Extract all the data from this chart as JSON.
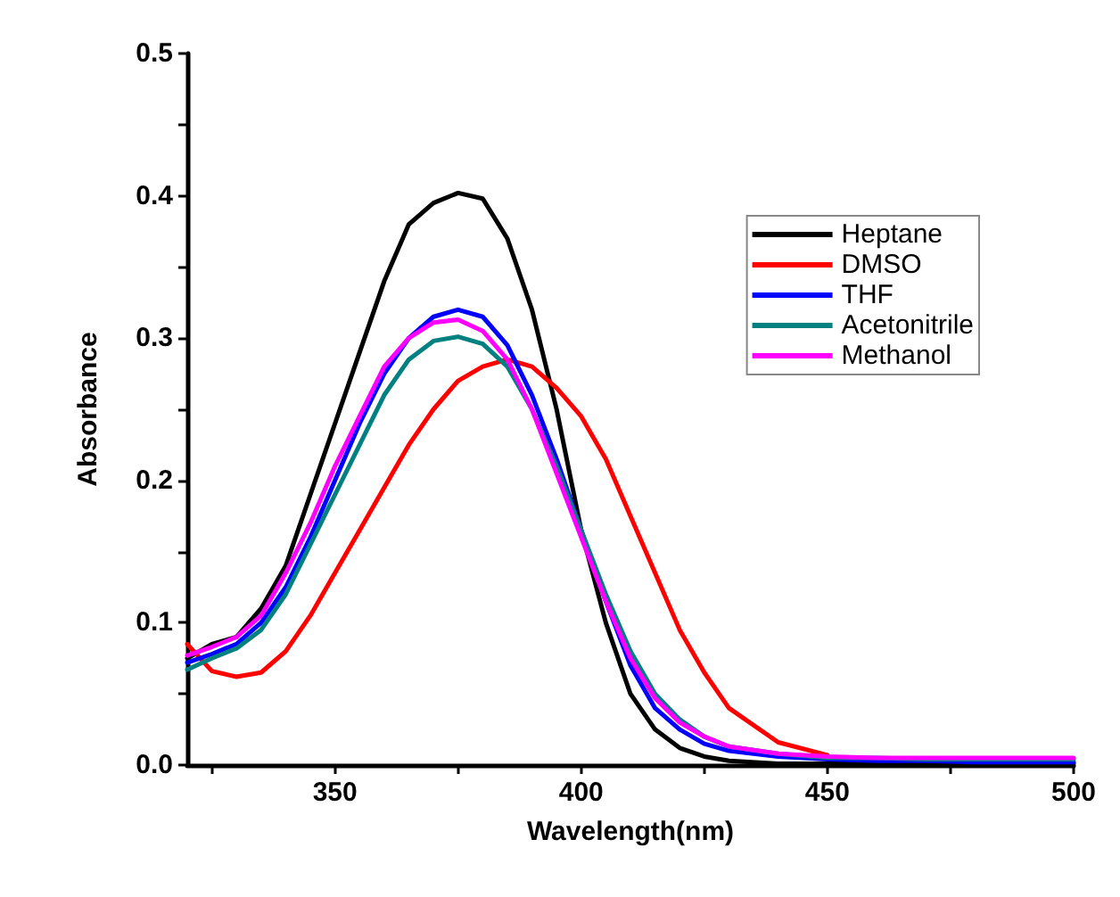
{
  "chart_data": {
    "type": "line",
    "xlabel": "Wavelength(nm)",
    "ylabel": "Absorbance",
    "x": [
      320,
      325,
      330,
      335,
      340,
      345,
      350,
      355,
      360,
      365,
      370,
      375,
      380,
      385,
      390,
      395,
      400,
      405,
      410,
      415,
      420,
      425,
      430,
      440,
      450,
      460,
      470,
      480,
      490,
      500
    ],
    "series": [
      {
        "name": "Heptane",
        "color": "#000000",
        "values": [
          0.075,
          0.085,
          0.09,
          0.11,
          0.14,
          0.19,
          0.24,
          0.29,
          0.34,
          0.38,
          0.395,
          0.402,
          0.398,
          0.37,
          0.32,
          0.25,
          0.165,
          0.1,
          0.05,
          0.025,
          0.012,
          0.006,
          0.003,
          0.001,
          0.001,
          0.001,
          0.001,
          0.001,
          0.001,
          0.001
        ]
      },
      {
        "name": "DMSO",
        "color": "#ff0000",
        "values": [
          0.085,
          0.066,
          0.062,
          0.065,
          0.08,
          0.105,
          0.135,
          0.165,
          0.195,
          0.225,
          0.25,
          0.27,
          0.28,
          0.285,
          0.28,
          0.265,
          0.245,
          0.215,
          0.175,
          0.135,
          0.095,
          0.065,
          0.04,
          0.016,
          0.007,
          null,
          null,
          null,
          null,
          null
        ]
      },
      {
        "name": "THF",
        "color": "#0000ff",
        "values": [
          0.072,
          0.078,
          0.085,
          0.1,
          0.125,
          0.16,
          0.2,
          0.24,
          0.275,
          0.3,
          0.315,
          0.32,
          0.315,
          0.295,
          0.26,
          0.215,
          0.165,
          0.115,
          0.07,
          0.04,
          0.025,
          0.015,
          0.01,
          0.006,
          0.004,
          0.003,
          0.003,
          0.002,
          0.002,
          0.002
        ]
      },
      {
        "name": "Acetonitrile",
        "color": "#008080",
        "values": [
          0.067,
          0.075,
          0.082,
          0.095,
          0.12,
          0.155,
          0.19,
          0.225,
          0.26,
          0.285,
          0.298,
          0.301,
          0.296,
          0.28,
          0.25,
          0.21,
          0.165,
          0.12,
          0.08,
          0.05,
          0.032,
          0.02,
          0.013,
          0.008,
          0.005,
          0.005,
          0.004,
          0.004,
          0.004,
          0.004
        ]
      },
      {
        "name": "Methanol",
        "color": "#ff00ff",
        "values": [
          0.077,
          0.083,
          0.09,
          0.105,
          0.135,
          0.17,
          0.21,
          0.245,
          0.28,
          0.3,
          0.311,
          0.313,
          0.305,
          0.285,
          0.25,
          0.205,
          0.16,
          0.115,
          0.075,
          0.047,
          0.03,
          0.02,
          0.013,
          0.008,
          0.006,
          0.005,
          0.005,
          0.005,
          0.005,
          0.005
        ]
      }
    ],
    "xlim": [
      320,
      500
    ],
    "xticks": [
      {
        "value": 325,
        "label": null
      },
      350,
      {
        "value": 375,
        "label": null
      },
      400,
      {
        "value": 425,
        "label": null
      },
      450,
      {
        "value": 475,
        "label": null
      },
      500
    ],
    "ylim": [
      0,
      0.5
    ],
    "yticks": [
      {
        "value": 0,
        "label": "0.0"
      },
      {
        "value": 0.05,
        "label": null
      },
      0.1,
      {
        "value": 0.15,
        "label": null
      },
      0.2,
      {
        "value": 0.25,
        "label": null
      },
      0.3,
      {
        "value": 0.35,
        "label": null
      },
      0.4,
      {
        "value": 0.45,
        "label": null
      },
      0.5
    ],
    "grid": false,
    "legend": "top right",
    "marker": "none",
    "line_style": "solid"
  }
}
